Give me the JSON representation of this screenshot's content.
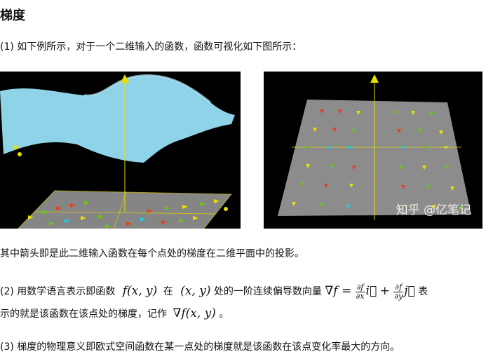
{
  "heading": "梯度",
  "para1": "(1) 如下例所示，对于一个二维输入的函数，函数可视化如下图所示：",
  "figure_left": {
    "description_icon": "3d-surface-with-gradient-arrows"
  },
  "figure_right": {
    "watermark": "知乎 @亿笔记"
  },
  "para2": "其中箭头即是此二维输入函数在每个点处的梯度在二维平面中的投影。",
  "para3": {
    "prefix": "(2) 用数学语言表示即函数",
    "func": "f(x, y)",
    "in": "在",
    "point": "(x, y)",
    "mid": "处的一阶连续偏导数向量",
    "nabla_f": "∇f =",
    "df": "∂f",
    "dx": "∂x",
    "dy": "∂y",
    "i": "i⃗",
    "plus": "+",
    "j": "j⃗",
    "suffix": "表"
  },
  "para3b": {
    "text": "示的就是该函数在该点处的梯度，记作",
    "grad": "∇f(x, y)",
    "end": "。"
  },
  "para4": "(3) 梯度的物理意义即欧式空间函数在某一点处的梯度就是该函数在该点变化率最大的方向。",
  "colors": {
    "surface": "#8fd3e8",
    "plane": "#8c8c8c",
    "arrow_yellow": "#e8e000",
    "arrow_red": "#e8401a",
    "arrow_green": "#6cc21a",
    "arrow_cyan": "#1ad0e0"
  }
}
